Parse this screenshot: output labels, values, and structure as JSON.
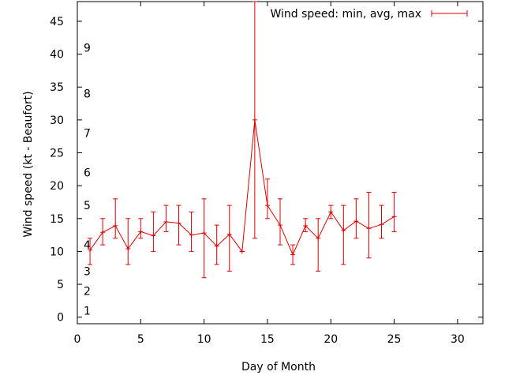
{
  "chart_data": {
    "type": "line",
    "title": "",
    "xlabel": "Day of Month",
    "ylabel": "Wind speed (kt - Beaufort)",
    "xlim": [
      0,
      32
    ],
    "ylim": [
      -1,
      48
    ],
    "xticks": [
      0,
      5,
      10,
      15,
      20,
      25,
      30
    ],
    "yticks": [
      0,
      5,
      10,
      15,
      20,
      25,
      30,
      35,
      40,
      45
    ],
    "grid": false,
    "legend": "top-right",
    "color": "#dd0000",
    "series": [
      {
        "name": "Wind speed: min, avg, max",
        "x": [
          1,
          2,
          3,
          4,
          5,
          6,
          7,
          8,
          9,
          10,
          11,
          12,
          13,
          14,
          15,
          16,
          17,
          18,
          19,
          20,
          21,
          22,
          23,
          24,
          25
        ],
        "avg": [
          10.2,
          12.9,
          13.9,
          10.4,
          13.0,
          12.4,
          14.5,
          14.3,
          12.5,
          12.8,
          10.8,
          12.6,
          10.0,
          30.0,
          17.0,
          14.0,
          9.5,
          13.9,
          12.0,
          16.0,
          13.2,
          14.6,
          13.5,
          14.1,
          15.3
        ],
        "min": [
          8,
          11,
          12,
          8,
          12,
          10,
          13,
          11,
          10,
          6,
          8,
          7,
          10,
          12,
          15,
          11,
          8,
          13,
          7,
          15,
          8,
          12,
          9,
          12,
          13
        ],
        "max": [
          12,
          15,
          18,
          15,
          15,
          16,
          17,
          17,
          16,
          18,
          14,
          17,
          10,
          48,
          21,
          18,
          11,
          15,
          15,
          17,
          17,
          18,
          19,
          17,
          19
        ]
      }
    ],
    "beaufort_labels": [
      {
        "label": "1",
        "y": 1
      },
      {
        "label": "2",
        "y": 4
      },
      {
        "label": "3",
        "y": 7
      },
      {
        "label": "4",
        "y": 11
      },
      {
        "label": "5",
        "y": 17
      },
      {
        "label": "6",
        "y": 22
      },
      {
        "label": "7",
        "y": 28
      },
      {
        "label": "8",
        "y": 34
      },
      {
        "label": "9",
        "y": 41
      }
    ]
  }
}
